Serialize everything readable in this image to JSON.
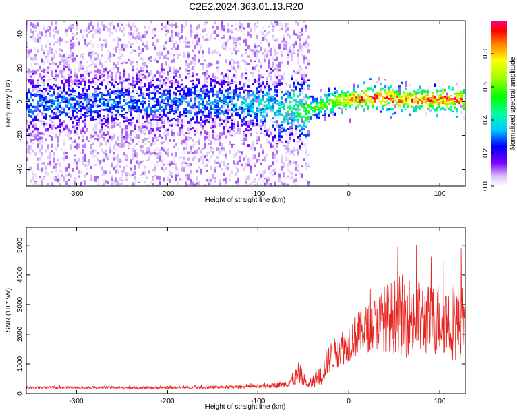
{
  "title": "C2E2.2024.363.01.13.R20",
  "chart_data": [
    {
      "type": "heatmap",
      "xlabel": "Height of straight line (km)",
      "ylabel": "Frequency (Hz)",
      "xlim": [
        -355,
        128
      ],
      "ylim": [
        -50,
        48
      ],
      "x_ticks": [
        -300,
        -200,
        -100,
        0,
        100
      ],
      "y_ticks": [
        -40,
        -20,
        0,
        20,
        40
      ],
      "colorbar": {
        "label": "Normalized spectral amplitude",
        "ticks": [
          0.0,
          0.2,
          0.4,
          0.6,
          0.8
        ],
        "range": [
          0,
          1
        ]
      },
      "ridge": {
        "x": [
          -355,
          -300,
          -250,
          -200,
          -150,
          -110,
          -90,
          -78,
          -70,
          -62,
          -55,
          -45,
          -30,
          -15,
          0,
          20,
          40,
          60,
          80,
          100,
          115,
          128
        ],
        "y": [
          0,
          0,
          0,
          0,
          0,
          0,
          -2,
          -6,
          -4,
          -2,
          -5,
          -4,
          -1,
          1,
          2,
          3,
          3,
          2,
          2,
          2,
          2,
          2
        ],
        "peak_amplitude": [
          0.3,
          0.3,
          0.3,
          0.3,
          0.32,
          0.35,
          0.4,
          0.42,
          0.45,
          0.48,
          0.5,
          0.55,
          0.6,
          0.7,
          0.82,
          0.9,
          0.92,
          0.88,
          0.86,
          0.88,
          0.9,
          0.9
        ]
      }
    },
    {
      "type": "line",
      "xlabel": "Height of straight line (km)",
      "ylabel": "SNR (10 * v/v)",
      "xlim": [
        -355,
        128
      ],
      "ylim": [
        0,
        5600
      ],
      "x_ticks": [
        -300,
        -200,
        -100,
        0,
        100
      ],
      "y_ticks": [
        0,
        1000,
        2000,
        3000,
        4000,
        5000
      ],
      "series": [
        {
          "color": "#e8231f",
          "x": [
            -355,
            -300,
            -250,
            -200,
            -150,
            -100,
            -70,
            -60,
            -55,
            -50,
            -45,
            -40,
            -35,
            -30,
            -25,
            -20,
            -10,
            0,
            10,
            20,
            30,
            40,
            50,
            60,
            70,
            80,
            90,
            100,
            110,
            120,
            128
          ],
          "mean": [
            200,
            200,
            200,
            200,
            210,
            230,
            320,
            500,
            700,
            500,
            250,
            400,
            550,
            600,
            1000,
            1250,
            1500,
            1750,
            2000,
            2200,
            2400,
            2550,
            2600,
            2650,
            2550,
            2500,
            2450,
            2550,
            2450,
            2350,
            2300
          ],
          "spread": [
            60,
            60,
            60,
            60,
            70,
            80,
            150,
            350,
            500,
            300,
            150,
            300,
            400,
            450,
            600,
            700,
            800,
            900,
            1000,
            1100,
            1300,
            1500,
            1700,
            1900,
            1800,
            1700,
            1600,
            1700,
            1700,
            1800,
            1800
          ]
        }
      ]
    }
  ]
}
